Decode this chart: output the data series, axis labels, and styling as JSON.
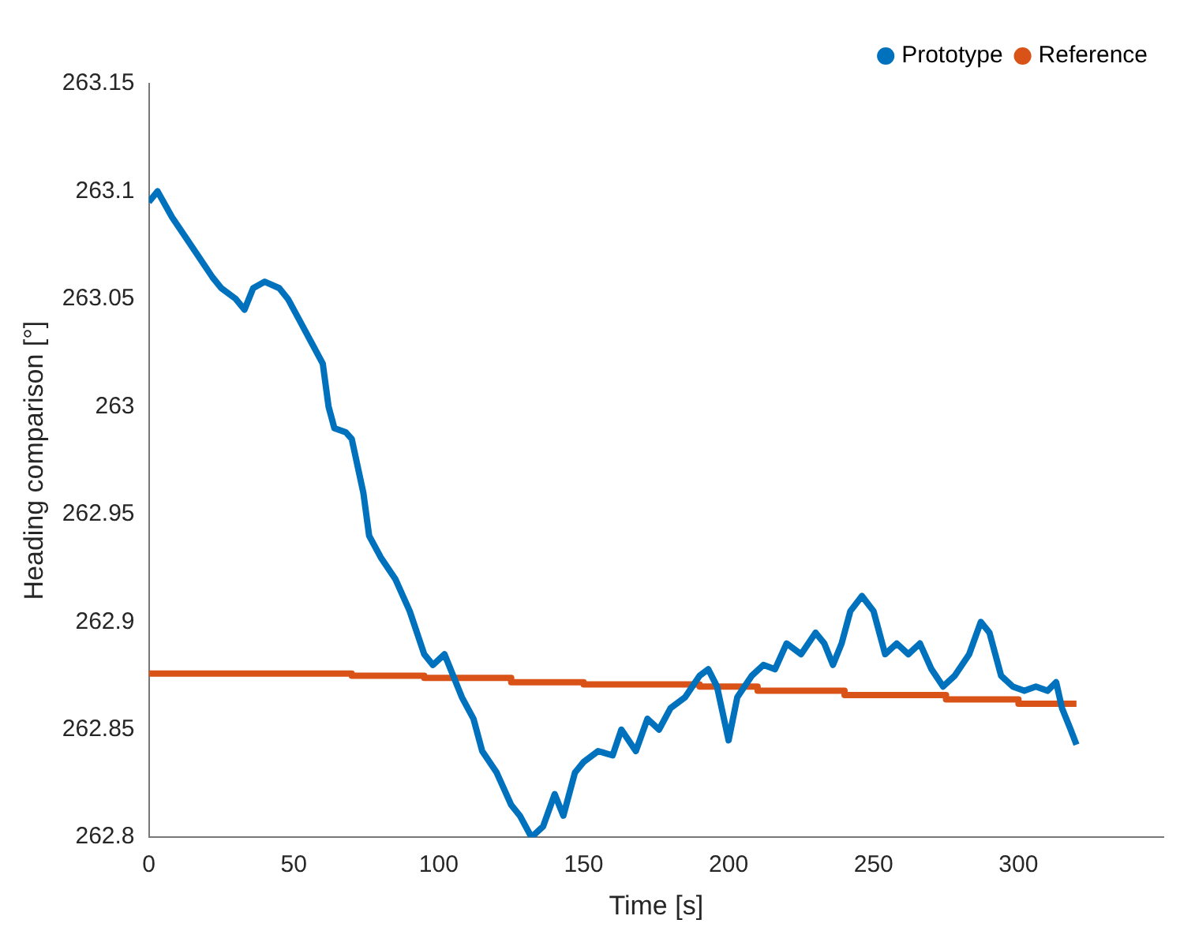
{
  "chart_data": {
    "type": "line",
    "xlabel": "Time [s]",
    "ylabel": "Heading comparison [°]",
    "xlim": [
      0,
      350
    ],
    "xticks": [
      0,
      50,
      100,
      150,
      200,
      250,
      300
    ],
    "ylim": [
      262.8,
      263.15
    ],
    "yticks": [
      262.8,
      262.85,
      262.9,
      262.95,
      263,
      263.05,
      263.1,
      263.15
    ],
    "grid": false,
    "legend": "top right",
    "marker": "none",
    "series": [
      {
        "name": "Prototype",
        "color": "#0072bd",
        "x": [
          0,
          3,
          8,
          12,
          17,
          22,
          25,
          30,
          33,
          36,
          40,
          45,
          48,
          52,
          56,
          60,
          62,
          64,
          68,
          70,
          74,
          76,
          80,
          85,
          90,
          95,
          98,
          102,
          105,
          108,
          112,
          115,
          120,
          125,
          128,
          132,
          136,
          140,
          143,
          147,
          150,
          155,
          160,
          163,
          168,
          172,
          176,
          180,
          185,
          190,
          193,
          196,
          200,
          203,
          208,
          212,
          216,
          220,
          225,
          230,
          233,
          236,
          239,
          242,
          246,
          250,
          254,
          258,
          262,
          266,
          270,
          274,
          278,
          283,
          287,
          290,
          294,
          298,
          302,
          306,
          310,
          313,
          315,
          318,
          320
        ],
        "values": [
          263.095,
          263.1,
          263.088,
          263.08,
          263.07,
          263.06,
          263.055,
          263.05,
          263.045,
          263.055,
          263.058,
          263.055,
          263.05,
          263.04,
          263.03,
          263.02,
          263.0,
          262.99,
          262.988,
          262.985,
          262.96,
          262.94,
          262.93,
          262.92,
          262.905,
          262.885,
          262.88,
          262.885,
          262.875,
          262.865,
          262.855,
          262.84,
          262.83,
          262.815,
          262.81,
          262.8,
          262.805,
          262.82,
          262.81,
          262.83,
          262.835,
          262.84,
          262.838,
          262.85,
          262.84,
          262.855,
          262.85,
          262.86,
          262.865,
          262.875,
          262.878,
          262.87,
          262.845,
          262.865,
          262.875,
          262.88,
          262.878,
          262.89,
          262.885,
          262.895,
          262.89,
          262.88,
          262.89,
          262.905,
          262.912,
          262.905,
          262.885,
          262.89,
          262.885,
          262.89,
          262.878,
          262.87,
          262.875,
          262.885,
          262.9,
          262.895,
          262.875,
          262.87,
          262.868,
          262.87,
          262.868,
          262.872,
          262.86,
          262.85,
          262.843
        ]
      },
      {
        "name": "Reference",
        "color": "#d95319",
        "type": "step",
        "x": [
          0,
          70,
          95,
          125,
          150,
          190,
          210,
          240,
          275,
          300,
          320
        ],
        "values": [
          262.876,
          262.875,
          262.874,
          262.872,
          262.871,
          262.87,
          262.868,
          262.866,
          262.864,
          262.862,
          262.862
        ]
      }
    ]
  }
}
